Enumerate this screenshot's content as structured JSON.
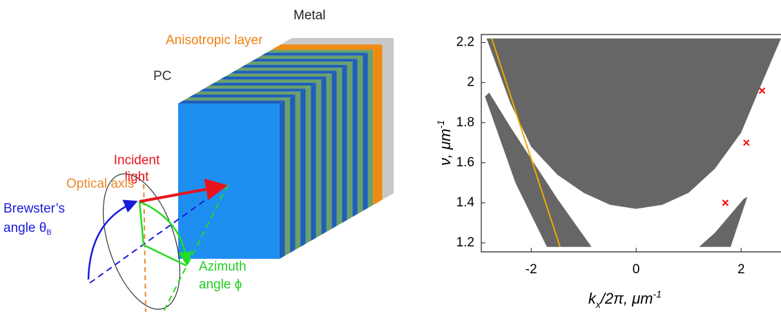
{
  "diagram": {
    "metal": "Metal",
    "anisotropic": "Anisotropic layer",
    "pc": "PC",
    "incident": [
      "Incident",
      "light"
    ],
    "optical_axis": "Optical axis",
    "brewster": [
      "Brewster’s",
      "angle θ"
    ],
    "brewster_sub": "B",
    "azimuth": [
      "Azimuth",
      "angle ϕ"
    ]
  },
  "chart_data": {
    "type": "band",
    "xlabel": {
      "main": "k",
      "sub": "x",
      "rest": "/2π, μm",
      "sup": "-1"
    },
    "ylabel": {
      "main": "ν, μm",
      "sup": "-1"
    },
    "xlim": [
      -2.95,
      2.76
    ],
    "ylim": [
      1.155,
      2.24
    ],
    "xticks": [
      -2,
      0,
      2
    ],
    "yticks": [
      1.2,
      1.4,
      1.6,
      1.8,
      2,
      2.2
    ],
    "region_color": "#666666",
    "regions": [
      {
        "points": [
          [
            -2.85,
            2.22
          ],
          [
            -2.4,
            1.9
          ],
          [
            -2,
            1.68
          ],
          [
            -1.5,
            1.54
          ],
          [
            -1,
            1.45
          ],
          [
            -0.5,
            1.39
          ],
          [
            0,
            1.37
          ],
          [
            0.5,
            1.39
          ],
          [
            1,
            1.45
          ],
          [
            1.5,
            1.57
          ],
          [
            2,
            1.75
          ],
          [
            2.4,
            2.0
          ],
          [
            2.76,
            2.22
          ]
        ]
      },
      {
        "points": [
          [
            -2.88,
            1.93
          ],
          [
            -2.8,
            1.95
          ],
          [
            -2.4,
            1.78
          ],
          [
            -2,
            1.62
          ],
          [
            -1.5,
            1.42
          ],
          [
            -0.85,
            1.18
          ],
          [
            -1.7,
            1.18
          ],
          [
            -2.3,
            1.5
          ]
        ]
      },
      {
        "points": [
          [
            1.2,
            1.18
          ],
          [
            1.5,
            1.25
          ],
          [
            2.05,
            1.42
          ],
          [
            2.12,
            1.43
          ],
          [
            1.8,
            1.18
          ]
        ]
      }
    ],
    "series": [
      {
        "type": "line",
        "color": "#f0a800",
        "x": [
          -2.75,
          -1.45
        ],
        "values": [
          2.22,
          1.18
        ]
      },
      {
        "type": "scatter",
        "color": "#ff0000",
        "x": [
          2.4,
          2.1,
          1.7
        ],
        "values": [
          1.96,
          1.7,
          1.4
        ]
      }
    ]
  }
}
